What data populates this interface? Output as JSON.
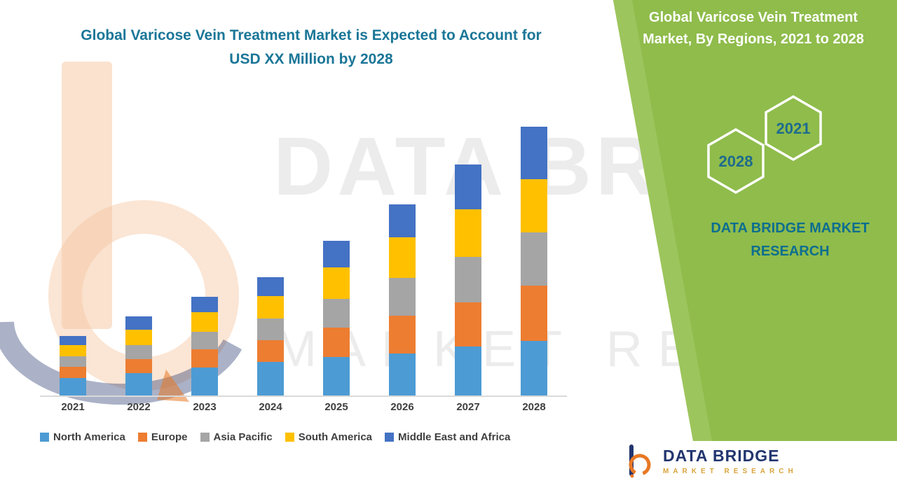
{
  "header": {
    "main_title_line1": "Global Varicose Vein Treatment Market is Expected to Account for",
    "main_title_line2": "USD XX Million by 2028"
  },
  "side_panel": {
    "title_line1": "Global Varicose Vein Treatment",
    "title_line2": "Market, By Regions, 2021 to 2028",
    "hexagon_back_year": "2028",
    "hexagon_front_year": "2021",
    "brand_line1": "DATA BRIDGE MARKET",
    "brand_line2": "RESEARCH",
    "panel_color": "#8FBC4B",
    "brand_text_color": "#0D6E8F",
    "title_text_color": "#FFFFFF"
  },
  "watermark": {
    "line1": "DATA BRIDGE",
    "line2": "MARKET RESEARCH"
  },
  "footer_logo": {
    "name": "DATA BRIDGE",
    "tagline": "MARKET RESEARCH",
    "name_color": "#22356F",
    "tagline_color": "#D9A43C",
    "icon_orange": "#E87824",
    "icon_navy": "#22356F"
  },
  "chart_data": {
    "type": "bar",
    "stacked": true,
    "title": "Global Varicose Vein Treatment Market is Expected to Account for USD XX Million by 2028",
    "xlabel": "",
    "ylabel": "",
    "y_axis_labels_visible": false,
    "grid": false,
    "legend_position": "bottom",
    "units_note": "Relative units estimated from bar heights; actual values shown as USD XX Million",
    "categories": [
      "2021",
      "2022",
      "2023",
      "2024",
      "2025",
      "2026",
      "2027",
      "2028"
    ],
    "ylim": [
      0,
      390
    ],
    "series": [
      {
        "name": "North America",
        "color": "#4D9BD4",
        "values": [
          25,
          32,
          40,
          48,
          55,
          60,
          70,
          78
        ]
      },
      {
        "name": "Europe",
        "color": "#ED7D31",
        "values": [
          16,
          20,
          26,
          31,
          42,
          53,
          62,
          78
        ]
      },
      {
        "name": "Asia Pacific",
        "color": "#A5A5A5",
        "values": [
          15,
          20,
          25,
          30,
          40,
          54,
          65,
          76
        ]
      },
      {
        "name": "South America",
        "color": "#FFC000",
        "values": [
          16,
          22,
          27,
          32,
          45,
          58,
          68,
          75
        ]
      },
      {
        "name": "Middle East and Africa",
        "color": "#4472C4",
        "values": [
          13,
          18,
          22,
          27,
          38,
          47,
          63,
          75
        ]
      }
    ]
  }
}
